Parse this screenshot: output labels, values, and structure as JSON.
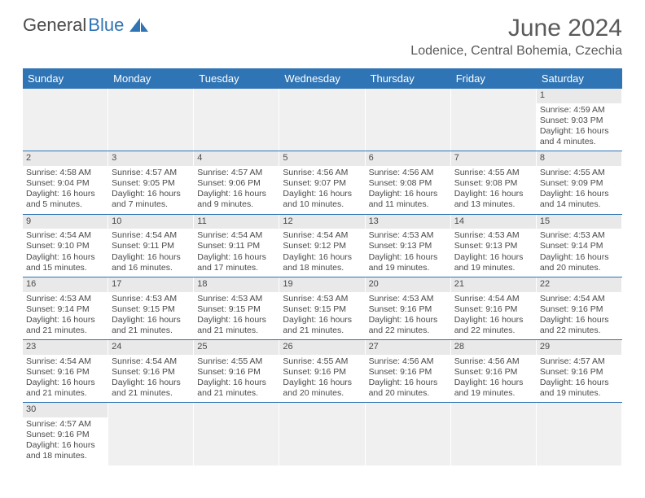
{
  "logo": {
    "word1": "General",
    "word2": "Blue"
  },
  "title": "June 2024",
  "location": "Lodenice, Central Bohemia, Czechia",
  "colors": {
    "header_bg": "#2f74b5",
    "header_text": "#ffffff",
    "daynum_bg": "#e9e9e9",
    "empty_bg": "#f0f0f0",
    "row_border": "#2f74b5",
    "text": "#4a4a4a"
  },
  "weekdays": [
    "Sunday",
    "Monday",
    "Tuesday",
    "Wednesday",
    "Thursday",
    "Friday",
    "Saturday"
  ],
  "weeks": [
    [
      null,
      null,
      null,
      null,
      null,
      null,
      {
        "n": "1",
        "sr": "Sunrise: 4:59 AM",
        "ss": "Sunset: 9:03 PM",
        "dl": "Daylight: 16 hours and 4 minutes."
      }
    ],
    [
      {
        "n": "2",
        "sr": "Sunrise: 4:58 AM",
        "ss": "Sunset: 9:04 PM",
        "dl": "Daylight: 16 hours and 5 minutes."
      },
      {
        "n": "3",
        "sr": "Sunrise: 4:57 AM",
        "ss": "Sunset: 9:05 PM",
        "dl": "Daylight: 16 hours and 7 minutes."
      },
      {
        "n": "4",
        "sr": "Sunrise: 4:57 AM",
        "ss": "Sunset: 9:06 PM",
        "dl": "Daylight: 16 hours and 9 minutes."
      },
      {
        "n": "5",
        "sr": "Sunrise: 4:56 AM",
        "ss": "Sunset: 9:07 PM",
        "dl": "Daylight: 16 hours and 10 minutes."
      },
      {
        "n": "6",
        "sr": "Sunrise: 4:56 AM",
        "ss": "Sunset: 9:08 PM",
        "dl": "Daylight: 16 hours and 11 minutes."
      },
      {
        "n": "7",
        "sr": "Sunrise: 4:55 AM",
        "ss": "Sunset: 9:08 PM",
        "dl": "Daylight: 16 hours and 13 minutes."
      },
      {
        "n": "8",
        "sr": "Sunrise: 4:55 AM",
        "ss": "Sunset: 9:09 PM",
        "dl": "Daylight: 16 hours and 14 minutes."
      }
    ],
    [
      {
        "n": "9",
        "sr": "Sunrise: 4:54 AM",
        "ss": "Sunset: 9:10 PM",
        "dl": "Daylight: 16 hours and 15 minutes."
      },
      {
        "n": "10",
        "sr": "Sunrise: 4:54 AM",
        "ss": "Sunset: 9:11 PM",
        "dl": "Daylight: 16 hours and 16 minutes."
      },
      {
        "n": "11",
        "sr": "Sunrise: 4:54 AM",
        "ss": "Sunset: 9:11 PM",
        "dl": "Daylight: 16 hours and 17 minutes."
      },
      {
        "n": "12",
        "sr": "Sunrise: 4:54 AM",
        "ss": "Sunset: 9:12 PM",
        "dl": "Daylight: 16 hours and 18 minutes."
      },
      {
        "n": "13",
        "sr": "Sunrise: 4:53 AM",
        "ss": "Sunset: 9:13 PM",
        "dl": "Daylight: 16 hours and 19 minutes."
      },
      {
        "n": "14",
        "sr": "Sunrise: 4:53 AM",
        "ss": "Sunset: 9:13 PM",
        "dl": "Daylight: 16 hours and 19 minutes."
      },
      {
        "n": "15",
        "sr": "Sunrise: 4:53 AM",
        "ss": "Sunset: 9:14 PM",
        "dl": "Daylight: 16 hours and 20 minutes."
      }
    ],
    [
      {
        "n": "16",
        "sr": "Sunrise: 4:53 AM",
        "ss": "Sunset: 9:14 PM",
        "dl": "Daylight: 16 hours and 21 minutes."
      },
      {
        "n": "17",
        "sr": "Sunrise: 4:53 AM",
        "ss": "Sunset: 9:15 PM",
        "dl": "Daylight: 16 hours and 21 minutes."
      },
      {
        "n": "18",
        "sr": "Sunrise: 4:53 AM",
        "ss": "Sunset: 9:15 PM",
        "dl": "Daylight: 16 hours and 21 minutes."
      },
      {
        "n": "19",
        "sr": "Sunrise: 4:53 AM",
        "ss": "Sunset: 9:15 PM",
        "dl": "Daylight: 16 hours and 21 minutes."
      },
      {
        "n": "20",
        "sr": "Sunrise: 4:53 AM",
        "ss": "Sunset: 9:16 PM",
        "dl": "Daylight: 16 hours and 22 minutes."
      },
      {
        "n": "21",
        "sr": "Sunrise: 4:54 AM",
        "ss": "Sunset: 9:16 PM",
        "dl": "Daylight: 16 hours and 22 minutes."
      },
      {
        "n": "22",
        "sr": "Sunrise: 4:54 AM",
        "ss": "Sunset: 9:16 PM",
        "dl": "Daylight: 16 hours and 22 minutes."
      }
    ],
    [
      {
        "n": "23",
        "sr": "Sunrise: 4:54 AM",
        "ss": "Sunset: 9:16 PM",
        "dl": "Daylight: 16 hours and 21 minutes."
      },
      {
        "n": "24",
        "sr": "Sunrise: 4:54 AM",
        "ss": "Sunset: 9:16 PM",
        "dl": "Daylight: 16 hours and 21 minutes."
      },
      {
        "n": "25",
        "sr": "Sunrise: 4:55 AM",
        "ss": "Sunset: 9:16 PM",
        "dl": "Daylight: 16 hours and 21 minutes."
      },
      {
        "n": "26",
        "sr": "Sunrise: 4:55 AM",
        "ss": "Sunset: 9:16 PM",
        "dl": "Daylight: 16 hours and 20 minutes."
      },
      {
        "n": "27",
        "sr": "Sunrise: 4:56 AM",
        "ss": "Sunset: 9:16 PM",
        "dl": "Daylight: 16 hours and 20 minutes."
      },
      {
        "n": "28",
        "sr": "Sunrise: 4:56 AM",
        "ss": "Sunset: 9:16 PM",
        "dl": "Daylight: 16 hours and 19 minutes."
      },
      {
        "n": "29",
        "sr": "Sunrise: 4:57 AM",
        "ss": "Sunset: 9:16 PM",
        "dl": "Daylight: 16 hours and 19 minutes."
      }
    ],
    [
      {
        "n": "30",
        "sr": "Sunrise: 4:57 AM",
        "ss": "Sunset: 9:16 PM",
        "dl": "Daylight: 16 hours and 18 minutes."
      },
      null,
      null,
      null,
      null,
      null,
      null
    ]
  ]
}
